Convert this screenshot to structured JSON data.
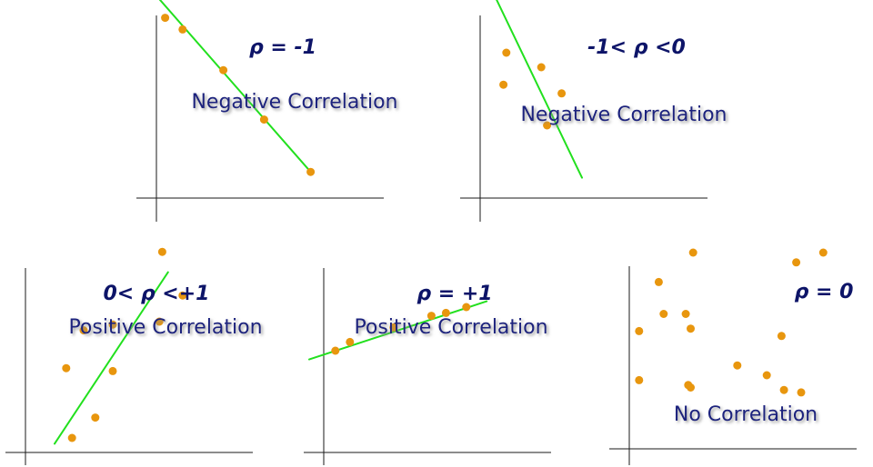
{
  "panels": [
    {
      "rho_label": "ρ = -1",
      "caption": "Negative Correlation",
      "points": [
        [
          0.3,
          8.2
        ],
        [
          0.9,
          7.8
        ],
        [
          2.3,
          6.4
        ],
        [
          3.7,
          4.7
        ],
        [
          5.3,
          2.9
        ]
      ],
      "fit_line": [
        [
          -0.3,
          9.3
        ],
        [
          5.3,
          2.9
        ]
      ]
    },
    {
      "rho_label": "-1< ρ <0",
      "caption": "Negative Correlation",
      "points": [
        [
          -0.3,
          9.4
        ],
        [
          1.0,
          9.4
        ],
        [
          0.9,
          7.0
        ],
        [
          0.8,
          5.9
        ],
        [
          2.1,
          6.5
        ],
        [
          2.8,
          5.6
        ],
        [
          2.3,
          4.5
        ]
      ],
      "fit_line": [
        [
          0.0,
          10.0
        ],
        [
          3.5,
          2.7
        ]
      ]
    },
    {
      "rho_label": "0< ρ <+1",
      "caption": "Positive Correlation",
      "points": [
        [
          4.7,
          8.9
        ],
        [
          5.4,
          7.4
        ],
        [
          4.6,
          6.5
        ],
        [
          3.0,
          6.4
        ],
        [
          2.0,
          6.2
        ],
        [
          1.4,
          4.9
        ],
        [
          3.0,
          4.8
        ],
        [
          2.4,
          3.2
        ],
        [
          1.6,
          2.5
        ]
      ],
      "fit_line": [
        [
          1.0,
          2.3
        ],
        [
          4.9,
          8.2
        ]
      ]
    },
    {
      "rho_label": "ρ = +1",
      "caption": "Positive Correlation",
      "points": [
        [
          0.4,
          5.5
        ],
        [
          0.9,
          5.8
        ],
        [
          2.4,
          6.3
        ],
        [
          3.7,
          6.7
        ],
        [
          4.2,
          6.8
        ],
        [
          4.9,
          7.0
        ]
      ],
      "fit_line": [
        [
          -0.5,
          5.2
        ],
        [
          5.6,
          7.2
        ]
      ]
    },
    {
      "rho_label": "ρ = 0",
      "caption": "No Correlation",
      "points": [
        [
          2.6,
          10.0
        ],
        [
          6.8,
          9.6
        ],
        [
          7.9,
          10.0
        ],
        [
          1.2,
          8.8
        ],
        [
          1.4,
          7.5
        ],
        [
          2.3,
          7.5
        ],
        [
          2.5,
          6.9
        ],
        [
          6.2,
          6.6
        ],
        [
          0.4,
          6.8
        ],
        [
          4.4,
          5.4
        ],
        [
          5.6,
          5.0
        ],
        [
          0.4,
          4.8
        ],
        [
          2.5,
          4.5
        ],
        [
          2.4,
          4.6
        ],
        [
          7.0,
          4.3
        ],
        [
          6.3,
          4.4
        ]
      ],
      "fit_line": null
    }
  ]
}
